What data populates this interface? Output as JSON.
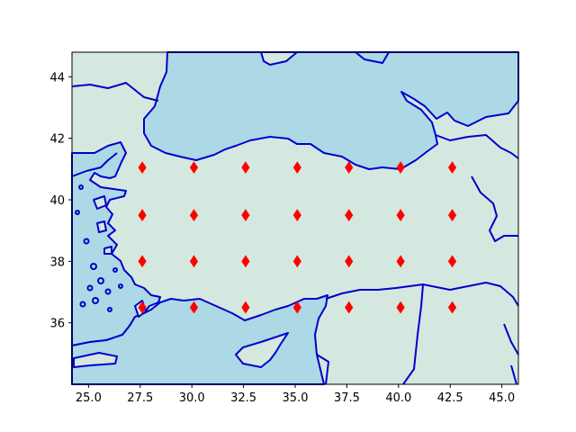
{
  "chart_data": {
    "type": "scatter",
    "title": "",
    "xlabel": "",
    "ylabel": "",
    "xlim": [
      24.2,
      45.8
    ],
    "ylim": [
      34.0,
      44.8
    ],
    "xticks": [
      "25.0",
      "27.5",
      "30.0",
      "32.5",
      "35.0",
      "37.5",
      "40.0",
      "42.5",
      "45.0"
    ],
    "yticks": [
      "36",
      "38",
      "40",
      "42",
      "44"
    ],
    "grid": false,
    "marker": "diamond",
    "colors": {
      "land": "#d5e8e0",
      "water": "#add8e6",
      "coastline": "#0000cc",
      "marker": "#ff0000"
    },
    "series": [
      {
        "points": [
          [
            27.6,
            41.05
          ],
          [
            30.1,
            41.05
          ],
          [
            32.6,
            41.05
          ],
          [
            35.1,
            41.05
          ],
          [
            37.6,
            41.05
          ],
          [
            40.1,
            41.05
          ],
          [
            42.6,
            41.05
          ],
          [
            27.6,
            39.5
          ],
          [
            30.1,
            39.5
          ],
          [
            32.6,
            39.5
          ],
          [
            35.1,
            39.5
          ],
          [
            37.6,
            39.5
          ],
          [
            40.1,
            39.5
          ],
          [
            42.6,
            39.5
          ],
          [
            27.6,
            38.0
          ],
          [
            30.1,
            38.0
          ],
          [
            32.6,
            38.0
          ],
          [
            35.1,
            38.0
          ],
          [
            37.6,
            38.0
          ],
          [
            40.1,
            38.0
          ],
          [
            42.6,
            38.0
          ],
          [
            27.6,
            36.5
          ],
          [
            30.1,
            36.5
          ],
          [
            32.6,
            36.5
          ],
          [
            35.1,
            36.5
          ],
          [
            37.6,
            36.5
          ],
          [
            40.1,
            36.5
          ],
          [
            42.6,
            36.5
          ]
        ]
      }
    ]
  }
}
